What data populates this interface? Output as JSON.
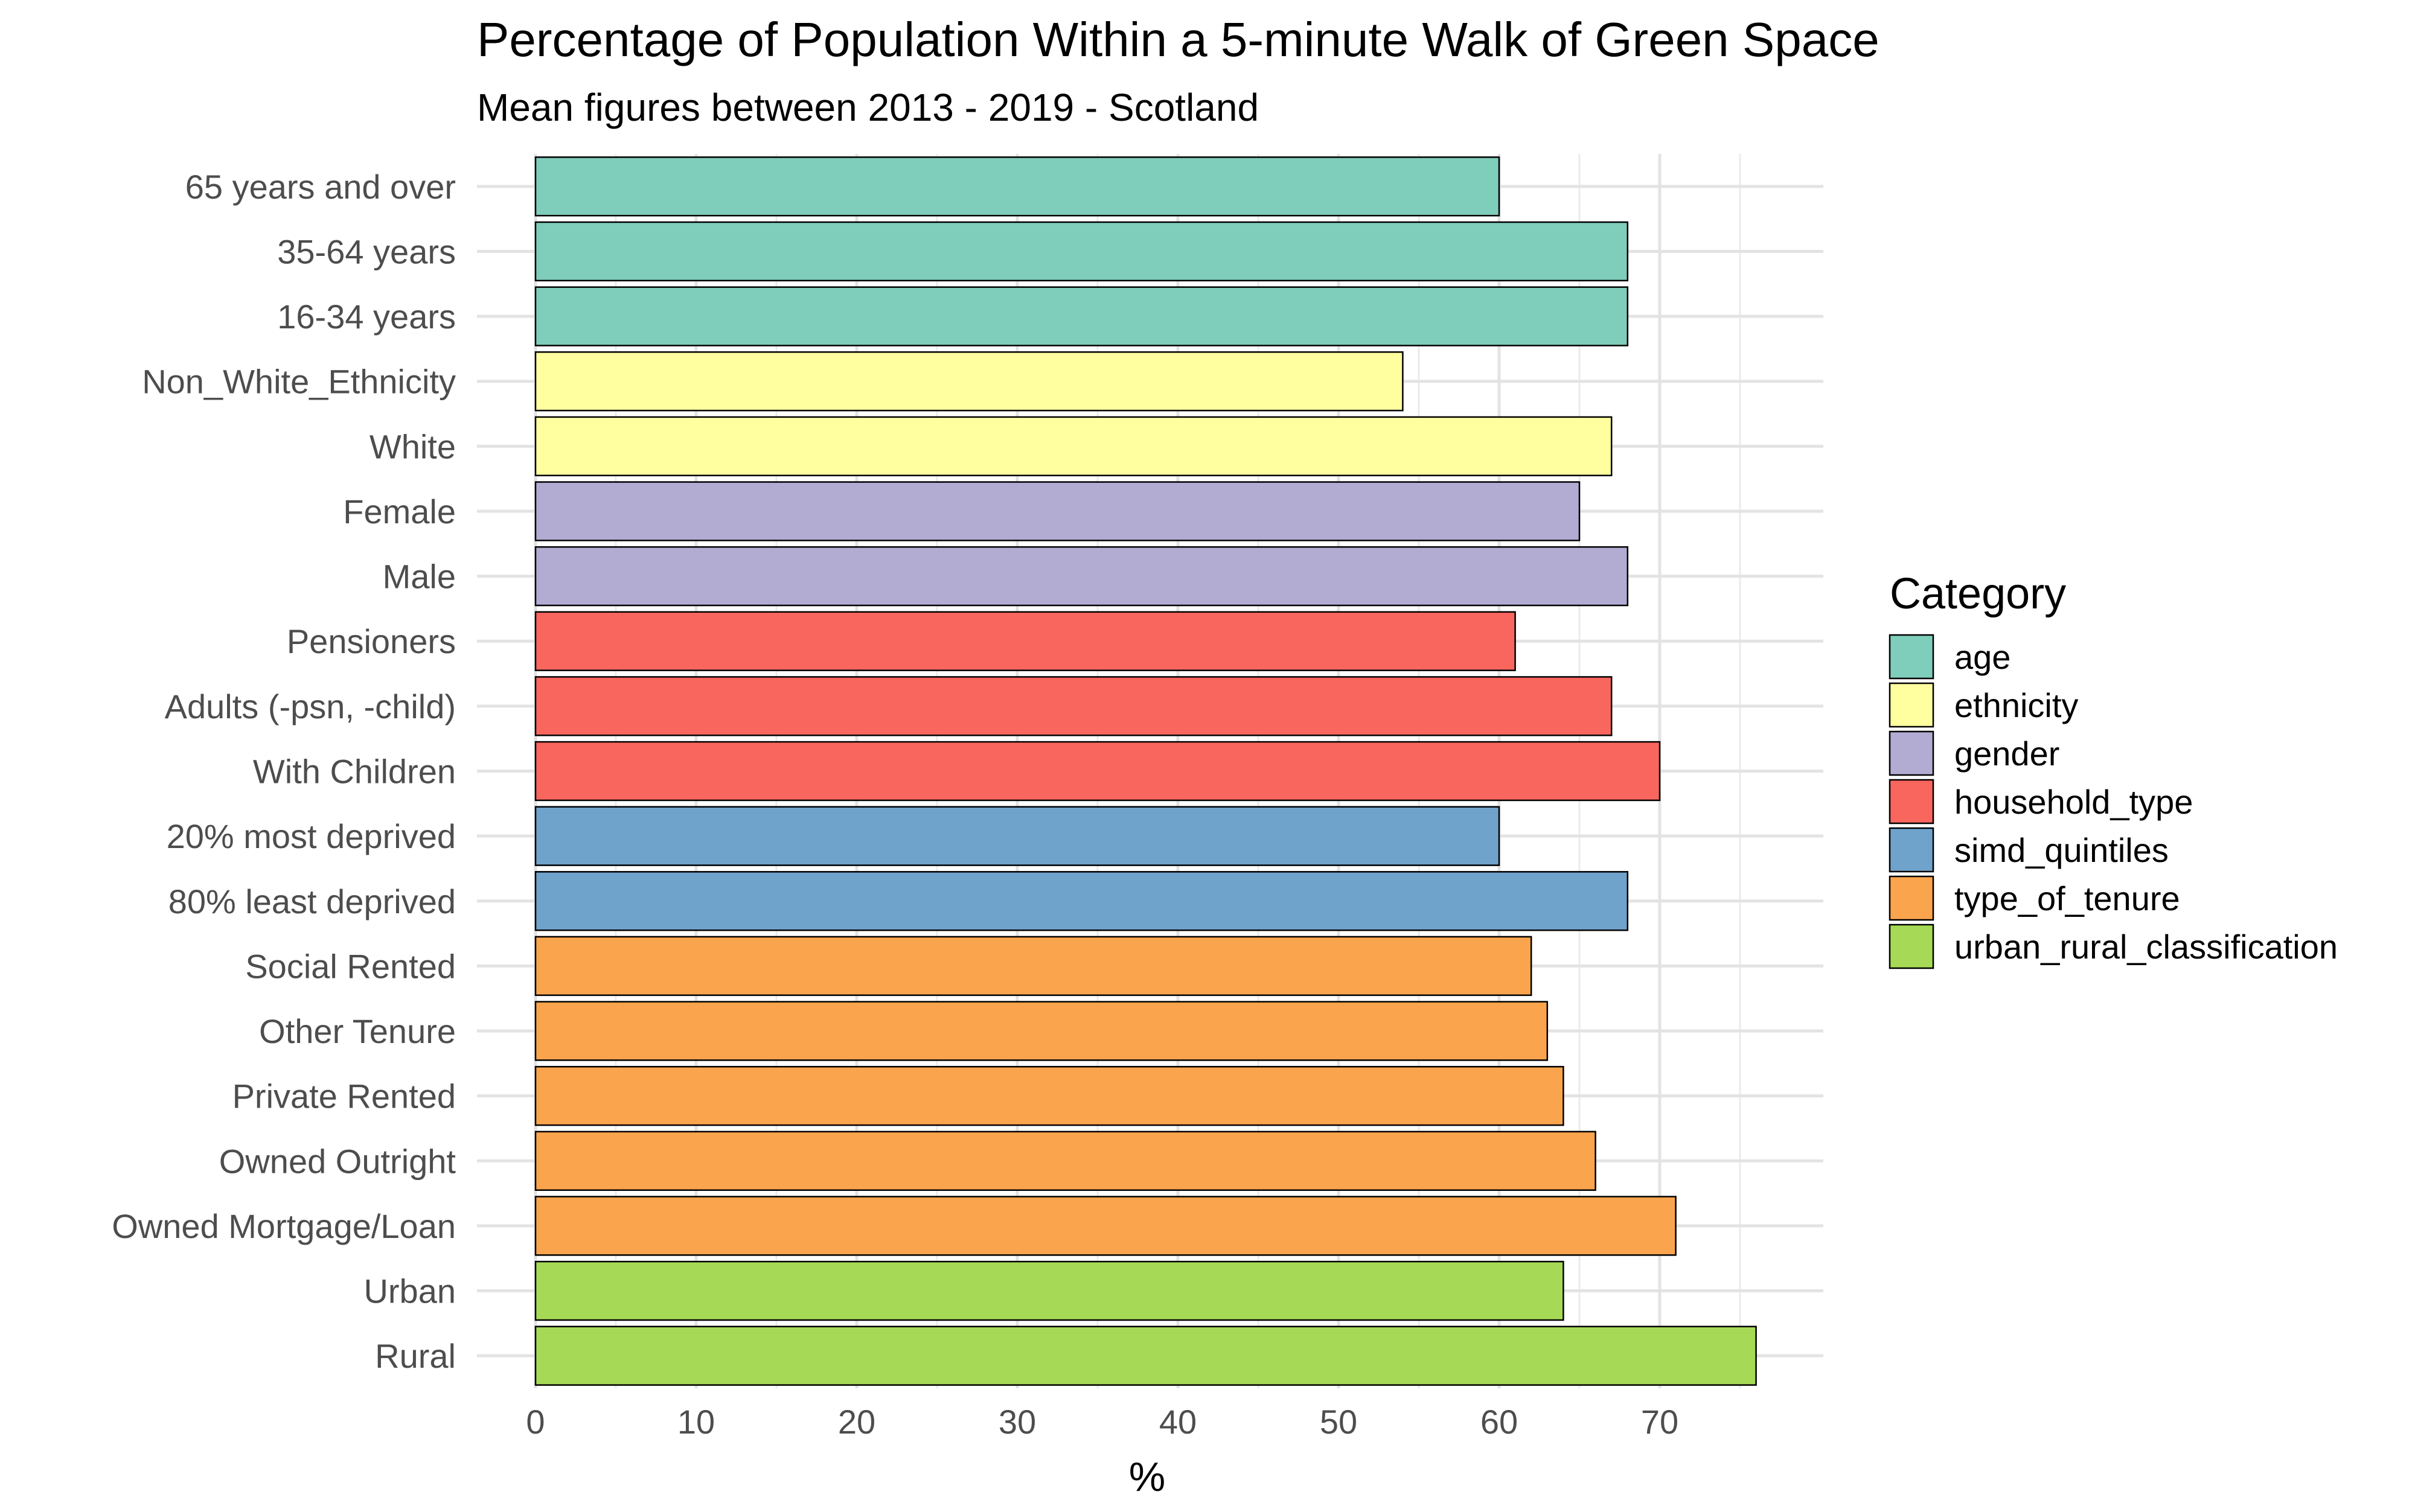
{
  "chart_data": {
    "type": "bar",
    "orientation": "horizontal",
    "title": "Percentage of Population Within a 5-minute Walk of Green Space",
    "subtitle": "Mean figures between 2013 - 2019 - Scotland",
    "xlabel": "%",
    "ylabel": "",
    "xlim": [
      0,
      80
    ],
    "x_ticks": [
      "0",
      "10",
      "20",
      "30",
      "40",
      "50",
      "60",
      "70"
    ],
    "grid": true,
    "legend": {
      "title": "Category",
      "position": "right",
      "entries": [
        {
          "name": "age",
          "color": "#7FCDBB"
        },
        {
          "name": "ethnicity",
          "color": "#FFFFA0"
        },
        {
          "name": "gender",
          "color": "#B2ABD2"
        },
        {
          "name": "household_type",
          "color": "#F8665E"
        },
        {
          "name": "simd_quintiles",
          "color": "#6FA3CC"
        },
        {
          "name": "type_of_tenure",
          "color": "#FBA44E"
        },
        {
          "name": "urban_rural_classification",
          "color": "#A6DA56"
        }
      ]
    },
    "bars": [
      {
        "label": "65 years and over",
        "value": 60,
        "category": "age"
      },
      {
        "label": "35-64 years",
        "value": 68,
        "category": "age"
      },
      {
        "label": "16-34 years",
        "value": 68,
        "category": "age"
      },
      {
        "label": "Non_White_Ethnicity",
        "value": 54,
        "category": "ethnicity"
      },
      {
        "label": "White",
        "value": 67,
        "category": "ethnicity"
      },
      {
        "label": "Female",
        "value": 65,
        "category": "gender"
      },
      {
        "label": "Male",
        "value": 68,
        "category": "gender"
      },
      {
        "label": "Pensioners",
        "value": 61,
        "category": "household_type"
      },
      {
        "label": "Adults (-psn, -child)",
        "value": 67,
        "category": "household_type"
      },
      {
        "label": "With Children",
        "value": 70,
        "category": "household_type"
      },
      {
        "label": "20% most deprived",
        "value": 60,
        "category": "simd_quintiles"
      },
      {
        "label": "80% least deprived",
        "value": 68,
        "category": "simd_quintiles"
      },
      {
        "label": "Social Rented",
        "value": 62,
        "category": "type_of_tenure"
      },
      {
        "label": "Other Tenure",
        "value": 63,
        "category": "type_of_tenure"
      },
      {
        "label": "Private Rented",
        "value": 64,
        "category": "type_of_tenure"
      },
      {
        "label": "Owned Outright",
        "value": 66,
        "category": "type_of_tenure"
      },
      {
        "label": "Owned Mortgage/Loan",
        "value": 71,
        "category": "type_of_tenure"
      },
      {
        "label": "Urban",
        "value": 64,
        "category": "urban_rural_classification"
      },
      {
        "label": "Rural",
        "value": 76,
        "category": "urban_rural_classification"
      }
    ]
  }
}
